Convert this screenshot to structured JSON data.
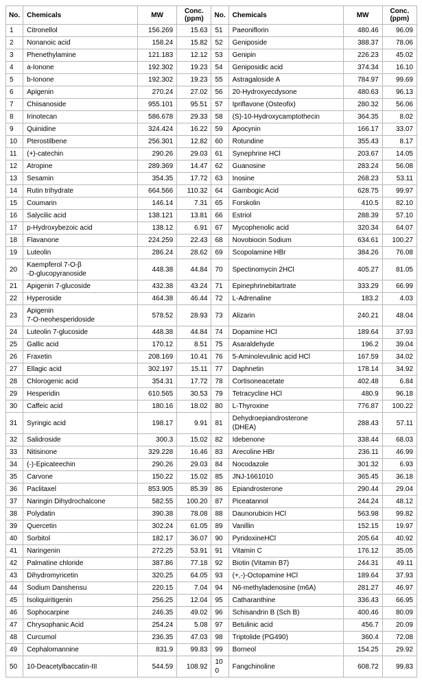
{
  "headers": {
    "no": "No.",
    "chem": "Chemicals",
    "mw": "MW",
    "conc_line1": "Conc.",
    "conc_line2": "(ppm)"
  },
  "rows": [
    {
      "no": 1,
      "chem": "Citronellol",
      "mw": "156.269",
      "conc": "15.63",
      "no2": 51,
      "chem2": "Paeoniflorin",
      "mw2": "480.46",
      "conc2": "96.09"
    },
    {
      "no": 2,
      "chem": "Nonanoic acid",
      "mw": "158.24",
      "conc": "15.82",
      "no2": 52,
      "chem2": "Geniposide",
      "mw2": "388.37",
      "conc2": "78.06"
    },
    {
      "no": 3,
      "chem": "Phenethylamine",
      "mw": "121.183",
      "conc": "12.12",
      "no2": 53,
      "chem2": "Genipin",
      "mw2": "226.23",
      "conc2": "45.02"
    },
    {
      "no": 4,
      "chem": "a-Ionone",
      "mw": "192.302",
      "conc": "19.23",
      "no2": 54,
      "chem2": "Geniposidic acid",
      "mw2": "374.34",
      "conc2": "16.10"
    },
    {
      "no": 5,
      "chem": "b-Ionone",
      "mw": "192.302",
      "conc": "19.23",
      "no2": 55,
      "chem2": "Astragaloside A",
      "mw2": "784.97",
      "conc2": "99.69"
    },
    {
      "no": 6,
      "chem": "Apigenin",
      "mw": "270.24",
      "conc": "27.02",
      "no2": 56,
      "chem2": "20-Hydroxyecdysone",
      "mw2": "480.63",
      "conc2": "96.13"
    },
    {
      "no": 7,
      "chem": "Chiisanoside",
      "mw": "955.101",
      "conc": "95.51",
      "no2": 57,
      "chem2": "Ipriflavone (Osteofix)",
      "mw2": "280.32",
      "conc2": "56.06"
    },
    {
      "no": 8,
      "chem": "Irinotecan",
      "mw": "586.678",
      "conc": "29.33",
      "no2": 58,
      "chem2": "(S)-10-Hydroxycamptothecin",
      "mw2": "364.35",
      "conc2": "8.02"
    },
    {
      "no": 9,
      "chem": "Quinidine",
      "mw": "324.424",
      "conc": "16.22",
      "no2": 59,
      "chem2": "Apocynin",
      "mw2": "166.17",
      "conc2": "33.07"
    },
    {
      "no": 10,
      "chem": "Pterostilbene",
      "mw": "256.301",
      "conc": "12.82",
      "no2": 60,
      "chem2": "Rotundine",
      "mw2": "355.43",
      "conc2": "8.17"
    },
    {
      "no": 11,
      "chem": "(+)-catechin",
      "mw": "290.26",
      "conc": "29.03",
      "no2": 61,
      "chem2": "Synephrine HCl",
      "mw2": "203.67",
      "conc2": "14.05"
    },
    {
      "no": 12,
      "chem": "Atropine",
      "mw": "289.369",
      "conc": "14.47",
      "no2": 62,
      "chem2": "Guanosine",
      "mw2": "283.24",
      "conc2": "56.08"
    },
    {
      "no": 13,
      "chem": "Sesamin",
      "mw": "354.35",
      "conc": "17.72",
      "no2": 63,
      "chem2": "Inosine",
      "mw2": "268.23",
      "conc2": "53.11"
    },
    {
      "no": 14,
      "chem": "Rutin trihydrate",
      "mw": "664.566",
      "conc": "110.32",
      "no2": 64,
      "chem2": "Gambogic Acid",
      "mw2": "628.75",
      "conc2": "99.97"
    },
    {
      "no": 15,
      "chem": "Coumarin",
      "mw": "146.14",
      "conc": "7.31",
      "no2": 65,
      "chem2": "Forskolin",
      "mw2": "410.5",
      "conc2": "82.10"
    },
    {
      "no": 16,
      "chem": "Salycilic acid",
      "mw": "138.121",
      "conc": "13.81",
      "no2": 66,
      "chem2": "Estriol",
      "mw2": "288.39",
      "conc2": "57.10"
    },
    {
      "no": 17,
      "chem": "p-Hydroxybezoic acid",
      "mw": "138.12",
      "conc": "6.91",
      "no2": 67,
      "chem2": "Mycophenolic acid",
      "mw2": "320.34",
      "conc2": "64.07"
    },
    {
      "no": 18,
      "chem": "Flavanone",
      "mw": "224.259",
      "conc": "22.43",
      "no2": 68,
      "chem2": "Novobiocin Sodium",
      "mw2": "634.61",
      "conc2": "100.27"
    },
    {
      "no": 19,
      "chem": "Luteolin",
      "mw": "286.24",
      "conc": "28.62",
      "no2": 69,
      "chem2": "Scopolamine  HBr",
      "mw2": "384.26",
      "conc2": "76.08"
    },
    {
      "no": 20,
      "chem": "Kaempferol 7-O-β\n-D-glucopyranoside",
      "mw": "448.38",
      "conc": "44.84",
      "no2": 70,
      "chem2": "Spectinomycin 2HCl",
      "mw2": "405.27",
      "conc2": "81.05"
    },
    {
      "no": 21,
      "chem": "Apigenin 7-glucoside",
      "mw": "432.38",
      "conc": "43.24",
      "no2": 71,
      "chem2": "Epinephrinebitartrate",
      "mw2": "333.29",
      "conc2": "66.99"
    },
    {
      "no": 22,
      "chem": "Hyperoside",
      "mw": "464.38",
      "conc": "46.44",
      "no2": 72,
      "chem2": "L-Adrenaline",
      "mw2": "183.2",
      "conc2": "4.03"
    },
    {
      "no": 23,
      "chem": "Apigenin\n7-O-neohesperidoside",
      "mw": "578.52",
      "conc": "28.93",
      "no2": 73,
      "chem2": "Alizarin",
      "mw2": "240.21",
      "conc2": "48.04"
    },
    {
      "no": 24,
      "chem": "Luteolin 7-glucoside",
      "mw": "448.38",
      "conc": "44.84",
      "no2": 74,
      "chem2": "Dopamine HCl",
      "mw2": "189.64",
      "conc2": "37.93"
    },
    {
      "no": 25,
      "chem": "Gallic acid",
      "mw": "170.12",
      "conc": "8.51",
      "no2": 75,
      "chem2": "Asaraldehyde",
      "mw2": "196.2",
      "conc2": "39.04"
    },
    {
      "no": 26,
      "chem": "Fraxetin",
      "mw": "208.169",
      "conc": "10.41",
      "no2": 76,
      "chem2": "5-Aminolevulinic  acid HCl",
      "mw2": "167.59",
      "conc2": "34.02"
    },
    {
      "no": 27,
      "chem": "Ellagic acid",
      "mw": "302.197",
      "conc": "15.11",
      "no2": 77,
      "chem2": "Daphnetin",
      "mw2": "178.14",
      "conc2": "34.92"
    },
    {
      "no": 28,
      "chem": "Chlorogenic acid",
      "mw": "354.31",
      "conc": "17.72",
      "no2": 78,
      "chem2": "Cortisoneacetate",
      "mw2": "402.48",
      "conc2": "6.84"
    },
    {
      "no": 29,
      "chem": "Hesperidin",
      "mw": "610.565",
      "conc": "30.53",
      "no2": 79,
      "chem2": "Tetracycline HCl",
      "mw2": "480.9",
      "conc2": "96.18"
    },
    {
      "no": 30,
      "chem": "Caffeic acid",
      "mw": "180.16",
      "conc": "18.02",
      "no2": 80,
      "chem2": "L-Thyroxine",
      "mw2": "776.87",
      "conc2": "100.22"
    },
    {
      "no": 31,
      "chem": "Syringic acid",
      "mw": "198.17",
      "conc": "9.91",
      "no2": 81,
      "chem2": "Dehydroepiandrosterone\n(DHEA)",
      "mw2": "288.43",
      "conc2": "57.11"
    },
    {
      "no": 32,
      "chem": "Salidroside",
      "mw": "300.3",
      "conc": "15.02",
      "no2": 82,
      "chem2": "Idebenone",
      "mw2": "338.44",
      "conc2": "68.03"
    },
    {
      "no": 33,
      "chem": "Nitisinone",
      "mw": "329.228",
      "conc": "16.46",
      "no2": 83,
      "chem2": "Arecoline  HBr",
      "mw2": "236.11",
      "conc2": "46.99"
    },
    {
      "no": 34,
      "chem": "(-)-Epicateechin",
      "mw": "290.26",
      "conc": "29.03",
      "no2": 84,
      "chem2": "Nocodazole",
      "mw2": "301.32",
      "conc2": "6.93"
    },
    {
      "no": 35,
      "chem": "Carvone",
      "mw": "150.22",
      "conc": "15.02",
      "no2": 85,
      "chem2": "JNJ-1661010",
      "mw2": "365.45",
      "conc2": "36.18"
    },
    {
      "no": 36,
      "chem": "Paclitaxel",
      "mw": "853.905",
      "conc": "85.39",
      "no2": 86,
      "chem2": "Epiandrosterone",
      "mw2": "290.44",
      "conc2": "29.04"
    },
    {
      "no": 37,
      "chem": "Naringin Dihydrochalcone",
      "mw": "582.55",
      "conc": "100.20",
      "no2": 87,
      "chem2": "Piceatannol",
      "mw2": "244.24",
      "conc2": "48.12"
    },
    {
      "no": 38,
      "chem": "Polydatin",
      "mw": "390.38",
      "conc": "78.08",
      "no2": 88,
      "chem2": "Daunorubicin  HCl",
      "mw2": "563.98",
      "conc2": "99.82"
    },
    {
      "no": 39,
      "chem": "Quercetin",
      "mw": "302.24",
      "conc": "61.05",
      "no2": 89,
      "chem2": "Vanillin",
      "mw2": "152.15",
      "conc2": "19.97"
    },
    {
      "no": 40,
      "chem": "Sorbitol",
      "mw": "182.17",
      "conc": "36.07",
      "no2": 90,
      "chem2": "PyridoxineHCl",
      "mw2": "205.64",
      "conc2": "40.92"
    },
    {
      "no": 41,
      "chem": "Naringenin",
      "mw": "272.25",
      "conc": "53.91",
      "no2": 91,
      "chem2": "Vitamin C",
      "mw2": "176.12",
      "conc2": "35.05"
    },
    {
      "no": 42,
      "chem": "Palmatine chloride",
      "mw": "387.86",
      "conc": "77.18",
      "no2": 92,
      "chem2": "Biotin (Vitamin B7)",
      "mw2": "244.31",
      "conc2": "49.11"
    },
    {
      "no": 43,
      "chem": "Dihydromyricetin",
      "mw": "320.25",
      "conc": "64.05",
      "no2": 93,
      "chem2": "(+,-)-Octopamine HCl",
      "mw2": "189.64",
      "conc2": "37.93"
    },
    {
      "no": 44,
      "chem": "Sodium  Danshensu",
      "mw": "220.15",
      "conc": "7.04",
      "no2": 94,
      "chem2": "N6-methyladenosine (m6A)",
      "mw2": "281.27",
      "conc2": "46.97"
    },
    {
      "no": 45,
      "chem": "Isoliquiritigenin",
      "mw": "256.25",
      "conc": "12.04",
      "no2": 95,
      "chem2": "Catharanthine",
      "mw2": "336.43",
      "conc2": "66.95"
    },
    {
      "no": 46,
      "chem": "Sophocarpine",
      "mw": "246.35",
      "conc": "49.02",
      "no2": 96,
      "chem2": "Schisandrin B (Sch B)",
      "mw2": "400.46",
      "conc2": "80.09"
    },
    {
      "no": 47,
      "chem": "Chrysophanic Acid",
      "mw": "254.24",
      "conc": "5.08",
      "no2": 97,
      "chem2": "Betulinic acid",
      "mw2": "456.7",
      "conc2": "20.09"
    },
    {
      "no": 48,
      "chem": "Curcumol",
      "mw": "236.35",
      "conc": "47.03",
      "no2": 98,
      "chem2": "Triptolide (PG490)",
      "mw2": "360.4",
      "conc2": "72.08"
    },
    {
      "no": 49,
      "chem": "Cephalomannine",
      "mw": "831.9",
      "conc": "99.83",
      "no2": 99,
      "chem2": "Borneol",
      "mw2": "154.25",
      "conc2": "29.92"
    },
    {
      "no": 50,
      "chem": "10-Deacetylbaccatin-III",
      "mw": "544.59",
      "conc": "108.92",
      "no2": 100,
      "chem2": "Fangchinoline",
      "mw2": "608.72",
      "conc2": "99.83"
    }
  ]
}
